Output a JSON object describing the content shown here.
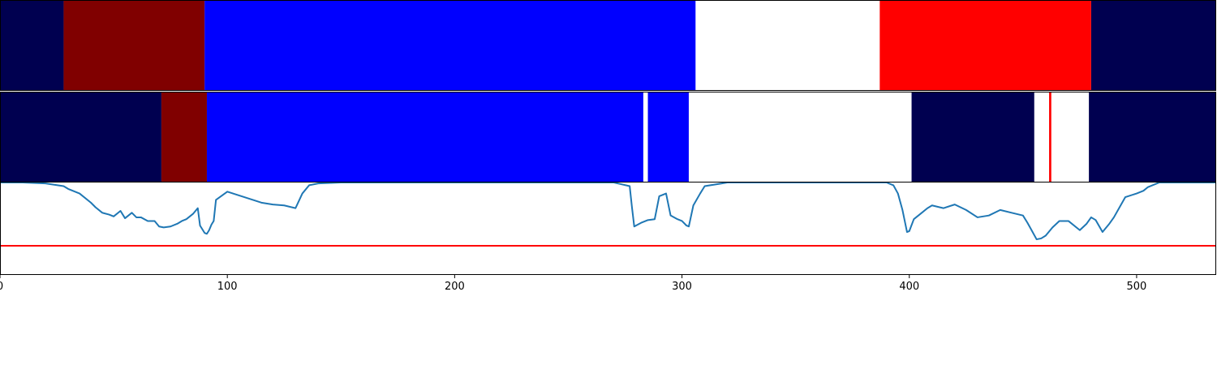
{
  "chart_data": [
    {
      "type": "heatmap",
      "xlim": [
        0,
        535
      ],
      "segments": [
        {
          "start": 0,
          "end": 28,
          "color": "#000050"
        },
        {
          "start": 28,
          "end": 90,
          "color": "#800000"
        },
        {
          "start": 90,
          "end": 306,
          "color": "#0000ff"
        },
        {
          "start": 306,
          "end": 387,
          "color": "#ffffff"
        },
        {
          "start": 387,
          "end": 480,
          "color": "#ff0000"
        },
        {
          "start": 480,
          "end": 535,
          "color": "#000050"
        }
      ]
    },
    {
      "type": "heatmap",
      "xlim": [
        0,
        535
      ],
      "segments": [
        {
          "start": 0,
          "end": 71,
          "color": "#000050"
        },
        {
          "start": 71,
          "end": 91,
          "color": "#800000"
        },
        {
          "start": 91,
          "end": 283,
          "color": "#0000ff"
        },
        {
          "start": 283,
          "end": 285,
          "color": "#ffffff"
        },
        {
          "start": 285,
          "end": 303,
          "color": "#0000ff"
        },
        {
          "start": 303,
          "end": 401,
          "color": "#ffffff"
        },
        {
          "start": 401,
          "end": 455,
          "color": "#000050"
        },
        {
          "start": 455,
          "end": 461.5,
          "color": "#ffffff"
        },
        {
          "start": 461.5,
          "end": 462.5,
          "color": "#ff0000"
        },
        {
          "start": 462.5,
          "end": 479,
          "color": "#ffffff"
        },
        {
          "start": 479,
          "end": 535,
          "color": "#000050"
        }
      ]
    },
    {
      "type": "line",
      "xlim": [
        0,
        535
      ],
      "ylim": [
        0,
        1
      ],
      "xticks": [
        0,
        100,
        200,
        300,
        400,
        500
      ],
      "threshold": 0.31,
      "threshold_color": "#ff0000",
      "line_color": "#1f77b4",
      "grid": false,
      "series": [
        {
          "x": [
            0,
            10,
            20,
            28,
            30,
            35,
            40,
            42,
            45,
            48,
            50,
            53,
            55,
            58,
            60,
            62,
            65,
            68,
            70,
            72,
            75,
            78,
            80,
            82,
            85,
            87,
            88,
            90,
            91,
            92,
            93,
            94,
            95,
            100,
            105,
            110,
            115,
            120,
            125,
            130,
            133,
            136,
            140,
            150,
            200,
            270,
            277,
            278,
            279,
            282,
            285,
            288,
            290,
            293,
            295,
            298,
            300,
            302,
            303,
            305,
            308,
            310,
            320,
            360,
            390,
            393,
            395,
            397,
            399,
            400,
            402,
            405,
            408,
            410,
            415,
            420,
            425,
            430,
            435,
            440,
            445,
            450,
            452,
            454,
            456,
            458,
            460,
            463,
            466,
            470,
            475,
            478,
            480,
            482,
            485,
            488,
            490,
            495,
            500,
            503,
            505,
            510,
            520,
            535
          ],
          "y": [
            1.0,
            1.0,
            0.99,
            0.96,
            0.93,
            0.88,
            0.78,
            0.73,
            0.67,
            0.65,
            0.63,
            0.69,
            0.61,
            0.67,
            0.62,
            0.62,
            0.58,
            0.58,
            0.52,
            0.51,
            0.52,
            0.55,
            0.58,
            0.6,
            0.66,
            0.72,
            0.53,
            0.45,
            0.44,
            0.48,
            0.54,
            0.58,
            0.81,
            0.9,
            0.86,
            0.82,
            0.78,
            0.76,
            0.75,
            0.72,
            0.88,
            0.97,
            0.99,
            1.0,
            1.0,
            1.0,
            0.96,
            0.73,
            0.52,
            0.56,
            0.59,
            0.6,
            0.85,
            0.88,
            0.64,
            0.6,
            0.58,
            0.53,
            0.52,
            0.75,
            0.88,
            0.96,
            1.0,
            1.0,
            1.0,
            0.97,
            0.88,
            0.7,
            0.46,
            0.47,
            0.6,
            0.66,
            0.72,
            0.75,
            0.72,
            0.76,
            0.7,
            0.62,
            0.64,
            0.7,
            0.67,
            0.64,
            0.56,
            0.47,
            0.38,
            0.39,
            0.42,
            0.51,
            0.58,
            0.58,
            0.48,
            0.55,
            0.62,
            0.59,
            0.46,
            0.55,
            0.62,
            0.84,
            0.88,
            0.91,
            0.95,
            1.0,
            1.0,
            1.0
          ]
        }
      ]
    }
  ]
}
